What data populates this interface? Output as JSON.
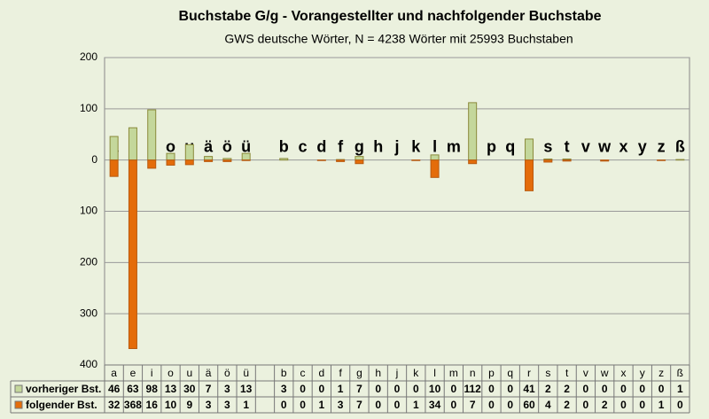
{
  "chart_data": {
    "type": "bar",
    "title": "Buchstabe G/g - Vorangestellter und nachfolgender Buchstabe",
    "subtitle": "GWS deutsche Wörter, N = 4238 Wörter mit 25993 Buchstaben",
    "categories": [
      "a",
      "e",
      "i",
      "o",
      "u",
      "ä",
      "ö",
      "ü",
      null,
      "b",
      "c",
      "d",
      "f",
      "g",
      "h",
      "j",
      "k",
      "l",
      "m",
      "n",
      "p",
      "q",
      "r",
      "s",
      "t",
      "v",
      "w",
      "x",
      "y",
      "z",
      "ß"
    ],
    "series": [
      {
        "name": "vorheriger Bst.",
        "color": "#c4d79b",
        "values": [
          46,
          63,
          98,
          13,
          30,
          7,
          3,
          13,
          null,
          3,
          0,
          0,
          1,
          7,
          0,
          0,
          0,
          10,
          0,
          112,
          0,
          0,
          41,
          2,
          2,
          0,
          0,
          0,
          0,
          0,
          1
        ]
      },
      {
        "name": "folgender Bst.",
        "color": "#e46c0a",
        "values": [
          -32,
          -368,
          -16,
          -10,
          -9,
          -3,
          -3,
          -1,
          null,
          0,
          0,
          -1,
          -3,
          -7,
          0,
          0,
          -1,
          -34,
          0,
          -7,
          0,
          0,
          -60,
          -4,
          -2,
          0,
          -2,
          0,
          0,
          -1,
          0
        ],
        "value_labels": [
          "32",
          "368",
          "16",
          "10",
          "9",
          "3",
          "3",
          "1",
          null,
          "0",
          "0",
          "1",
          "3",
          "7",
          "0",
          "0",
          "1",
          "34",
          "0",
          "7",
          "0",
          "0",
          "60",
          "4",
          "2",
          "0",
          "2",
          "0",
          "0",
          "1",
          "0"
        ]
      }
    ],
    "ylim": [
      -400,
      200
    ],
    "yticks": [
      200,
      100,
      0,
      {
        "value": -100,
        "label": "100"
      },
      {
        "value": -200,
        "label": "200"
      },
      {
        "value": -300,
        "label": "300"
      },
      {
        "value": -400,
        "label": "400"
      }
    ],
    "grid": true
  }
}
